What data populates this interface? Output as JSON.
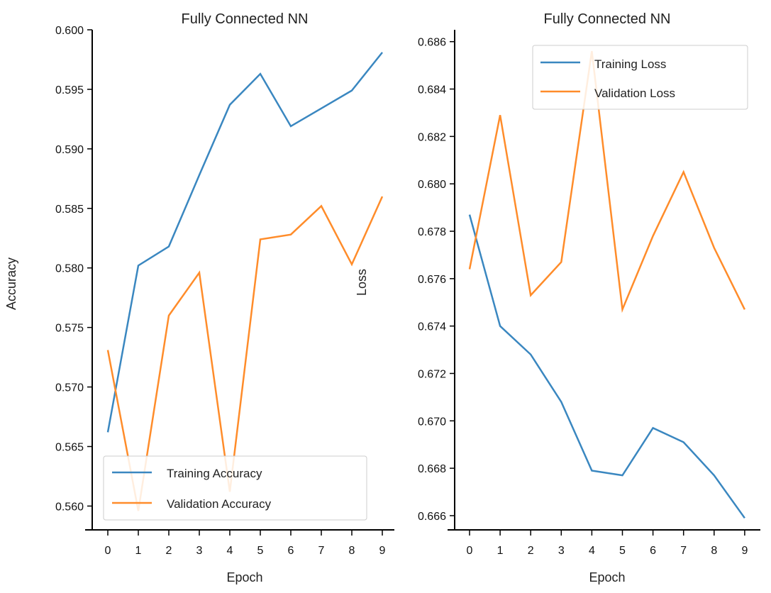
{
  "colors": {
    "training": "#3a87c0",
    "validation": "#ff8c2a",
    "axis": "#000000",
    "legend_border": "#cccccc"
  },
  "chart_data": [
    {
      "type": "line",
      "title": "Fully Connected NN",
      "xlabel": "Epoch",
      "ylabel": "Accuracy",
      "x": [
        0,
        1,
        2,
        3,
        4,
        5,
        6,
        7,
        8,
        9
      ],
      "x_ticks": [
        "0",
        "1",
        "2",
        "3",
        "4",
        "5",
        "6",
        "7",
        "8",
        "9"
      ],
      "ylim": [
        0.558,
        0.6
      ],
      "y_ticks": [
        "0.560",
        "0.565",
        "0.570",
        "0.575",
        "0.580",
        "0.585",
        "0.590",
        "0.595",
        "0.600"
      ],
      "legend_position": "bottom-left",
      "series": [
        {
          "name": "Training Accuracy",
          "values": [
            0.5662,
            0.5802,
            0.5818,
            0.5878,
            0.5937,
            0.5963,
            0.5919,
            0.5934,
            0.5949,
            0.5981
          ]
        },
        {
          "name": "Validation Accuracy",
          "values": [
            0.5731,
            0.5596,
            0.576,
            0.5796,
            0.5612,
            0.5824,
            0.5828,
            0.5852,
            0.5803,
            0.586
          ]
        }
      ]
    },
    {
      "type": "line",
      "title": "Fully Connected NN",
      "xlabel": "Epoch",
      "ylabel": "Loss",
      "x": [
        0,
        1,
        2,
        3,
        4,
        5,
        6,
        7,
        8,
        9
      ],
      "x_ticks": [
        "0",
        "1",
        "2",
        "3",
        "4",
        "5",
        "6",
        "7",
        "8",
        "9"
      ],
      "ylim": [
        0.6654,
        0.6865
      ],
      "y_ticks": [
        "0.666",
        "0.668",
        "0.670",
        "0.672",
        "0.674",
        "0.676",
        "0.678",
        "0.680",
        "0.682",
        "0.684",
        "0.686"
      ],
      "legend_position": "top-right",
      "series": [
        {
          "name": "Training Loss",
          "values": [
            0.6787,
            0.674,
            0.6728,
            0.6708,
            0.6679,
            0.6677,
            0.6697,
            0.6691,
            0.6677,
            0.6659
          ]
        },
        {
          "name": "Validation Loss",
          "values": [
            0.6764,
            0.6829,
            0.6753,
            0.6767,
            0.6856,
            0.6747,
            0.6778,
            0.6805,
            0.6773,
            0.6747
          ]
        }
      ]
    }
  ]
}
